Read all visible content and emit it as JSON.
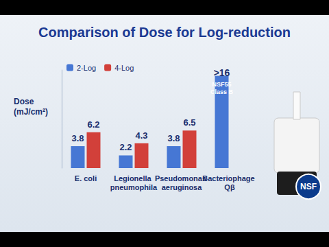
{
  "chart_data": {
    "type": "bar",
    "title": "Comparison of Dose for Log-reduction",
    "ylabel": "Dose (mJ/cm²)",
    "categories": [
      "E. coli",
      "Legionella pneumophila",
      "Pseudomonas aeruginosa",
      "Bacteriophage Qβ"
    ],
    "series": [
      {
        "name": "2-Log",
        "color": "#4677d4",
        "values": [
          3.8,
          2.2,
          3.8,
          16
        ],
        "value_labels": [
          "3.8",
          "2.2",
          "3.8",
          ">16"
        ]
      },
      {
        "name": "4-Log",
        "color": "#d2403a",
        "values": [
          6.2,
          4.3,
          6.5,
          null
        ]
      }
    ],
    "annotations": [
      {
        "text": "NSF55 Class B",
        "series": "2-Log",
        "category": "Bacteriophage Qβ"
      }
    ],
    "badge": "NSF",
    "ylim": [
      0,
      17
    ],
    "grid": false,
    "legend": "upper left",
    "data_labels": true,
    "tick_labels": "x"
  }
}
